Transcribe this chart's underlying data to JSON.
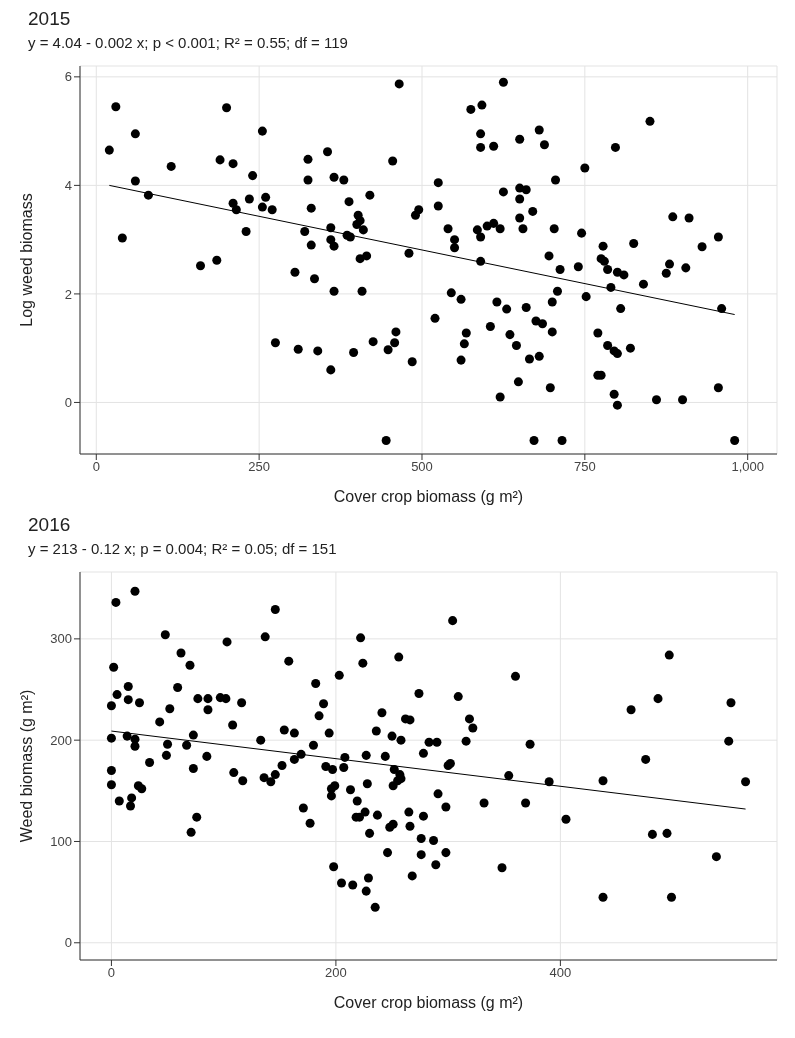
{
  "chart_data": [
    {
      "type": "scatter",
      "title": "2015",
      "subtitle": "y = 4.04 - 0.002 x; p < 0.001; R² = 0.55; df = 119",
      "xlabel": "Cover crop biomass (g m²)",
      "ylabel": "Log weed biomass",
      "xlim": [
        -25,
        1045
      ],
      "ylim": [
        -0.95,
        6.2
      ],
      "xticks": [
        0,
        250,
        500,
        750,
        {
          "value": 1000,
          "label": "1,000"
        }
      ],
      "yticks": [
        0,
        2,
        4,
        6
      ],
      "grid": true,
      "series": [
        {
          "color": "#000000",
          "marker": "circle",
          "x": [
            20,
            30,
            60,
            60,
            40,
            80,
            115,
            160,
            185,
            190,
            200,
            210,
            210,
            215,
            230,
            235,
            240,
            255,
            255,
            260,
            270,
            275,
            305,
            310,
            320,
            325,
            325,
            330,
            330,
            335,
            340,
            355,
            360,
            365,
            360,
            365,
            365,
            360,
            380,
            385,
            388,
            390,
            395,
            400,
            402,
            405,
            405,
            408,
            410,
            415,
            420,
            425,
            445,
            448,
            455,
            458,
            460,
            465,
            480,
            485,
            490,
            495,
            520,
            525,
            525,
            540,
            545,
            550,
            550,
            560,
            560,
            565,
            568,
            575,
            585,
            590,
            590,
            590,
            590,
            592,
            600,
            605,
            610,
            610,
            615,
            620,
            620,
            625,
            625,
            630,
            635,
            645,
            648,
            650,
            650,
            650,
            650,
            655,
            660,
            660,
            665,
            670,
            672,
            675,
            680,
            680,
            685,
            688,
            695,
            697,
            700,
            700,
            703,
            705,
            708,
            712,
            715,
            740,
            745,
            750,
            752,
            770,
            770,
            775,
            775,
            778,
            780,
            785,
            785,
            790,
            795,
            795,
            797,
            800,
            800,
            800,
            805,
            810,
            820,
            825,
            840,
            850,
            860,
            875,
            880,
            885,
            900,
            905,
            910,
            930,
            955,
            955,
            960,
            980
          ],
          "values": [
            4.65,
            5.45,
            4.95,
            4.08,
            3.03,
            3.82,
            4.35,
            2.52,
            2.62,
            4.47,
            5.43,
            4.4,
            3.67,
            3.55,
            3.15,
            3.75,
            4.18,
            5.0,
            3.6,
            3.78,
            3.55,
            1.1,
            2.4,
            0.98,
            3.15,
            4.48,
            4.1,
            3.58,
            2.9,
            2.28,
            0.95,
            4.62,
            3.22,
            4.15,
            3.0,
            2.88,
            2.05,
            0.6,
            4.1,
            3.08,
            3.7,
            3.05,
            0.92,
            3.28,
            3.45,
            3.35,
            2.65,
            2.05,
            3.18,
            2.7,
            3.82,
            1.12,
            -0.7,
            0.97,
            4.45,
            1.1,
            1.3,
            5.87,
            2.75,
            0.75,
            3.45,
            3.55,
            1.55,
            4.05,
            3.62,
            3.2,
            2.02,
            2.85,
            3.0,
            0.78,
            1.9,
            1.08,
            1.28,
            5.4,
            3.18,
            4.95,
            4.7,
            2.6,
            3.05,
            5.48,
            3.25,
            1.4,
            4.72,
            3.3,
            1.85,
            3.2,
            0.1,
            5.9,
            3.88,
            1.72,
            1.25,
            1.05,
            0.38,
            4.85,
            3.4,
            3.95,
            3.75,
            3.2,
            3.92,
            1.75,
            0.8,
            3.52,
            -0.7,
            1.5,
            5.02,
            0.85,
            1.45,
            4.75,
            2.7,
            0.27,
            1.3,
            1.85,
            3.2,
            4.1,
            2.05,
            2.45,
            -0.7,
            2.5,
            3.12,
            4.32,
            1.95,
            1.28,
            0.5,
            2.65,
            0.5,
            2.88,
            2.6,
            1.05,
            2.45,
            2.12,
            0.95,
            0.15,
            4.7,
            0.9,
            -0.05,
            2.4,
            1.73,
            2.35,
            1.0,
            2.93,
            2.18,
            5.18,
            0.05,
            2.38,
            2.55,
            3.42,
            0.05,
            2.48,
            3.4,
            2.87,
            3.05,
            0.27,
            1.73,
            -0.7
          ]
        },
        {
          "type": "line",
          "color": "#000000",
          "line_style": "solid",
          "x": [
            20,
            980
          ],
          "values": [
            4.0,
            1.62
          ]
        }
      ]
    },
    {
      "type": "scatter",
      "title": "2016",
      "subtitle": "y = 213 - 0.12 x; p = 0.004; R² = 0.05; df = 151",
      "xlabel": "Cover crop biomass (g m²)",
      "ylabel": "Weed biomass (g m²)",
      "xlim": [
        -28,
        593
      ],
      "ylim": [
        -17,
        366
      ],
      "xticks": [
        0,
        200,
        400
      ],
      "yticks": [
        0,
        100,
        200,
        300
      ],
      "grid": true,
      "series": [
        {
          "color": "#000000",
          "marker": "circle",
          "x": [
            0,
            0,
            0,
            0,
            4,
            2,
            5,
            7,
            15,
            15,
            14,
            18,
            17,
            21,
            21,
            21,
            25,
            24,
            27,
            34,
            43,
            48,
            49,
            50,
            52,
            59,
            62,
            67,
            70,
            73,
            73,
            71,
            76,
            77,
            86,
            86,
            85,
            103,
            97,
            102,
            108,
            109,
            116,
            117,
            133,
            137,
            136,
            142,
            146,
            146,
            152,
            154,
            158,
            163,
            163,
            169,
            171,
            177,
            180,
            182,
            185,
            189,
            194,
            191,
            197,
            196,
            196,
            199,
            198,
            203,
            207,
            208,
            205,
            213,
            215,
            219,
            218,
            222,
            224,
            221,
            226,
            227,
            228,
            230,
            229,
            227,
            304,
            256,
            360,
            497,
            274,
            309,
            463,
            487,
            552,
            241,
            262,
            266,
            319,
            322,
            236,
            250,
            258,
            283,
            290,
            316,
            373,
            550,
            244,
            278,
            476,
            300,
            302,
            252,
            257,
            258,
            251,
            255,
            354,
            390,
            438,
            565,
            291,
            298,
            332,
            369,
            237,
            265,
            278,
            405,
            251,
            248,
            266,
            276,
            287,
            482,
            495,
            246,
            276,
            298,
            539,
            289,
            348,
            268,
            235,
            438,
            499
          ],
          "values": [
            234,
            202,
            170,
            156,
            336,
            272,
            245,
            140,
            253,
            240,
            204,
            143,
            135,
            347,
            201,
            194,
            237,
            155,
            152,
            178,
            218,
            304,
            185,
            196,
            231,
            252,
            286,
            195,
            274,
            205,
            172,
            109,
            124,
            241,
            241,
            230,
            184,
            297,
            242,
            241,
            215,
            168,
            237,
            160,
            200,
            302,
            163,
            159,
            329,
            166,
            175,
            210,
            278,
            207,
            181,
            186,
            133,
            118,
            195,
            256,
            224,
            236,
            207,
            174,
            171,
            152,
            145,
            155,
            75,
            264,
            173,
            183,
            59,
            151,
            57,
            140,
            124,
            301,
            276,
            124,
            129,
            185,
            157,
            108,
            64,
            51,
            318,
            282,
            263,
            284,
            246,
            243,
            230,
            241,
            237,
            227,
            221,
            220,
            221,
            212,
            209,
            204,
            200,
            198,
            198,
            199,
            196,
            199,
            184,
            187,
            181,
            175,
            177,
            171,
            166,
            162,
            155,
            160,
            165,
            159,
            160,
            159,
            147,
            134,
            138,
            138,
            126,
            129,
            125,
            122,
            117,
            114,
            115,
            103,
            101,
            107,
            108,
            89,
            87,
            89,
            85,
            77,
            74,
            66,
            35,
            45,
            45
          ]
        },
        {
          "type": "line",
          "color": "#000000",
          "line_style": "solid",
          "x": [
            0,
            565
          ],
          "values": [
            209,
            132
          ]
        }
      ]
    }
  ]
}
